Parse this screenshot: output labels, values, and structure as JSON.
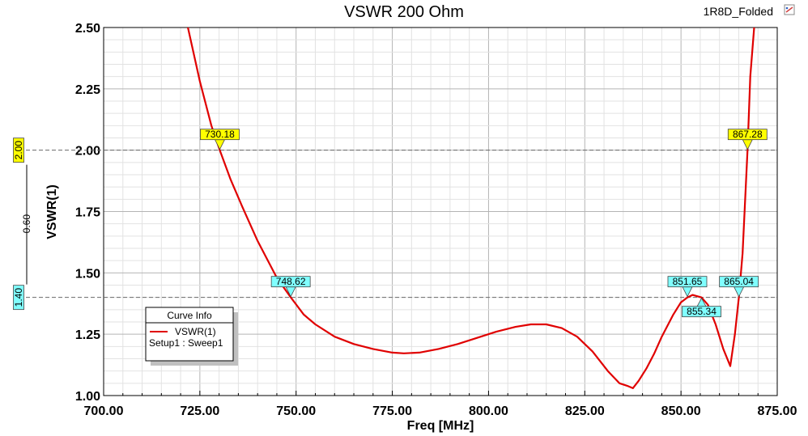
{
  "window": {
    "project_name": "1R8D_Folded",
    "plot_menu_icon": "plot-settings-icon"
  },
  "chart_data": {
    "type": "line",
    "title": "VSWR 200 Ohm",
    "xlabel": "Freq [MHz]",
    "ylabel": "VSWR(1)",
    "xlim": [
      700,
      875
    ],
    "ylim": [
      1.0,
      2.5
    ],
    "x_ticks": [
      "700.00",
      "725.00",
      "750.00",
      "775.00",
      "800.00",
      "825.00",
      "850.00",
      "875.00"
    ],
    "y_ticks": [
      "1.00",
      "1.25",
      "1.50",
      "1.75",
      "2.00",
      "2.25",
      "2.50"
    ],
    "grid": true,
    "legend": {
      "title": "Curve Info",
      "position": "bottom-left",
      "entries": [
        {
          "name": "VSWR(1)",
          "subtitle": "Setup1 : Sweep1",
          "color": "#e00000"
        }
      ]
    },
    "series": [
      {
        "name": "VSWR(1)",
        "color": "#e00000",
        "x": [
          721.9,
          725,
          728,
          730.18,
          733,
          736,
          740,
          745,
          748.62,
          752,
          755,
          760,
          765,
          770,
          775,
          778,
          782,
          787,
          792,
          797,
          802,
          807,
          811,
          815,
          819,
          823,
          827,
          831,
          834,
          836,
          837.5,
          839,
          841,
          843,
          845,
          848,
          850,
          851.65,
          853,
          855.34,
          857,
          859,
          861,
          862.8,
          864,
          865.04,
          866,
          867.28,
          868,
          869
        ],
        "y": [
          2.5,
          2.28,
          2.1,
          2.0,
          1.88,
          1.77,
          1.63,
          1.48,
          1.4,
          1.33,
          1.29,
          1.24,
          1.21,
          1.19,
          1.175,
          1.172,
          1.175,
          1.19,
          1.21,
          1.235,
          1.26,
          1.28,
          1.29,
          1.29,
          1.275,
          1.24,
          1.18,
          1.1,
          1.05,
          1.04,
          1.03,
          1.06,
          1.11,
          1.17,
          1.24,
          1.33,
          1.38,
          1.4,
          1.41,
          1.4,
          1.37,
          1.29,
          1.19,
          1.12,
          1.25,
          1.4,
          1.58,
          2.0,
          2.3,
          2.5
        ]
      }
    ],
    "reference_lines": [
      {
        "value": 2.0,
        "label": "2.00",
        "color": "#ffff00"
      },
      {
        "value": 1.4,
        "label": "1.40",
        "color": "#80ffff"
      }
    ],
    "delta_label": "0.60",
    "markers": [
      {
        "x": 730.18,
        "y": 2.0,
        "label": "730.18",
        "color": "#ffff00",
        "placement": "above"
      },
      {
        "x": 748.62,
        "y": 1.4,
        "label": "748.62",
        "color": "#80ffff",
        "placement": "above"
      },
      {
        "x": 851.65,
        "y": 1.4,
        "label": "851.65",
        "color": "#80ffff",
        "placement": "above"
      },
      {
        "x": 855.34,
        "y": 1.4,
        "label": "855.34",
        "color": "#80ffff",
        "placement": "below"
      },
      {
        "x": 865.04,
        "y": 1.4,
        "label": "865.04",
        "color": "#80ffff",
        "placement": "above"
      },
      {
        "x": 867.28,
        "y": 2.0,
        "label": "867.28",
        "color": "#ffff00",
        "placement": "above"
      }
    ]
  }
}
